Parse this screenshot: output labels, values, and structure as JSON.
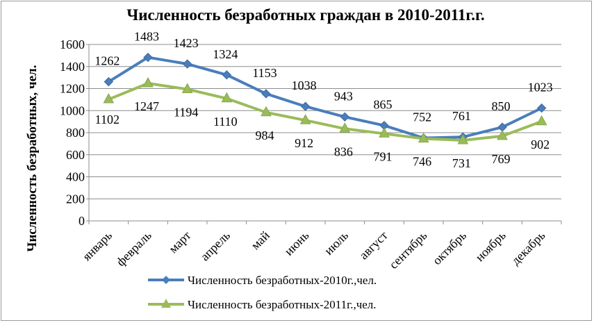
{
  "chart_data": {
    "type": "line",
    "title": "Численность безработных  граждан в 2010-2011г.г.",
    "xlabel": "",
    "ylabel": "Численность безработных, чел.",
    "ylim": [
      0,
      1600
    ],
    "yticks": [
      0,
      200,
      400,
      600,
      800,
      1000,
      1200,
      1400,
      1600
    ],
    "grid": true,
    "legend": "bottom",
    "categories": [
      "январь",
      "февраль",
      "март",
      "апрель",
      "май",
      "июнь",
      "июль",
      "август",
      "сентябрь",
      "октябрь",
      "ноябрь",
      "декабрь"
    ],
    "series": [
      {
        "name": "Численность безработных-2010г.,чел.",
        "color": "#4a7ebb",
        "marker": "diamond",
        "values": [
          1262,
          1483,
          1423,
          1324,
          1153,
          1038,
          943,
          865,
          752,
          761,
          850,
          1023
        ]
      },
      {
        "name": "Численность безработных-2011г.,чел.",
        "color": "#9bbb59",
        "marker": "triangle",
        "values": [
          1102,
          1247,
          1194,
          1110,
          984,
          912,
          836,
          791,
          746,
          731,
          769,
          902
        ]
      }
    ]
  }
}
